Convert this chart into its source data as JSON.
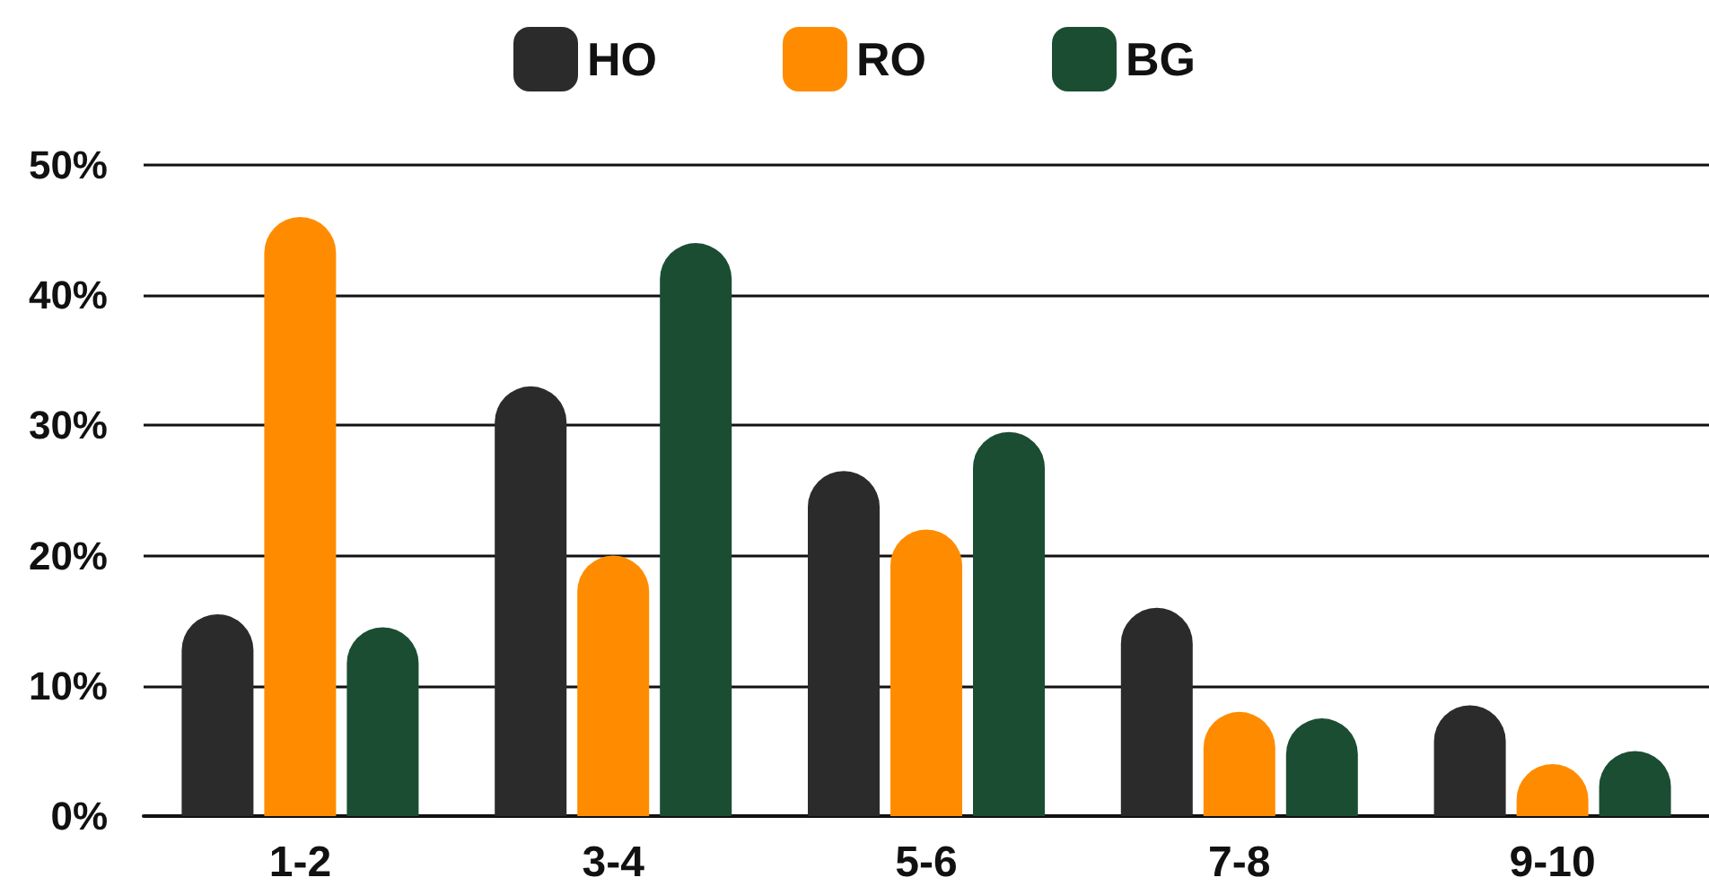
{
  "chart_data": {
    "type": "bar",
    "categories": [
      "1-2",
      "3-4",
      "5-6",
      "7-8",
      "9-10"
    ],
    "series": [
      {
        "name": "HO",
        "color": "#2b2b2b",
        "values": [
          15.5,
          33,
          26.5,
          16,
          8.5
        ]
      },
      {
        "name": "RO",
        "color": "#ff8c00",
        "values": [
          46,
          20,
          22,
          8,
          4
        ]
      },
      {
        "name": "BG",
        "color": "#1b4d33",
        "values": [
          14.5,
          44,
          29.5,
          7.5,
          5
        ]
      }
    ],
    "ylim": [
      0,
      50
    ],
    "yticks": [
      {
        "value": 0,
        "label": "0%"
      },
      {
        "value": 10,
        "label": "10%"
      },
      {
        "value": 20,
        "label": "20%"
      },
      {
        "value": 30,
        "label": "30%"
      },
      {
        "value": 40,
        "label": "40%"
      },
      {
        "value": 50,
        "label": "50%"
      }
    ],
    "grid": "y",
    "legend": "top"
  }
}
